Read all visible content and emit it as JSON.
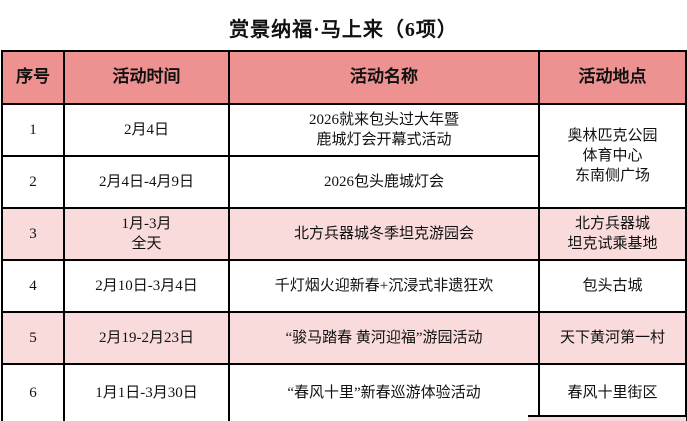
{
  "title": "赏景纳福·马上来（6项）",
  "colors": {
    "header_bg": "#ee9191",
    "stripe_row_bg": "#f9dbdb",
    "border": "#000000",
    "text": "#111111"
  },
  "table": {
    "headers": [
      "序号",
      "活动时间",
      "活动名称",
      "活动地点"
    ],
    "rows": [
      {
        "no": "1",
        "time": "2月4日",
        "name": "2026就来包头过大年暨\n鹿城灯会开幕式活动",
        "place": "奥林匹克公园\n体育中心\n东南侧广场"
      },
      {
        "no": "2",
        "time": "2月4日-4月9日",
        "name": "2026包头鹿城灯会",
        "place": ""
      },
      {
        "no": "3",
        "time": "1月-3月\n全天",
        "name": "北方兵器城冬季坦克游园会",
        "place": "北方兵器城\n坦克试乘基地"
      },
      {
        "no": "4",
        "time": "2月10日-3月4日",
        "name": "千灯烟火迎新春+沉浸式非遗狂欢",
        "place": "包头古城"
      },
      {
        "no": "5",
        "time": "2月19-2月23日",
        "name": "“骏马踏春 黄河迎福”游园活动",
        "place": "天下黄河第一村"
      },
      {
        "no": "6",
        "time": "1月1日-3月30日",
        "name": "“春风十里”新春巡游体验活动",
        "place": "春风十里街区"
      }
    ]
  }
}
